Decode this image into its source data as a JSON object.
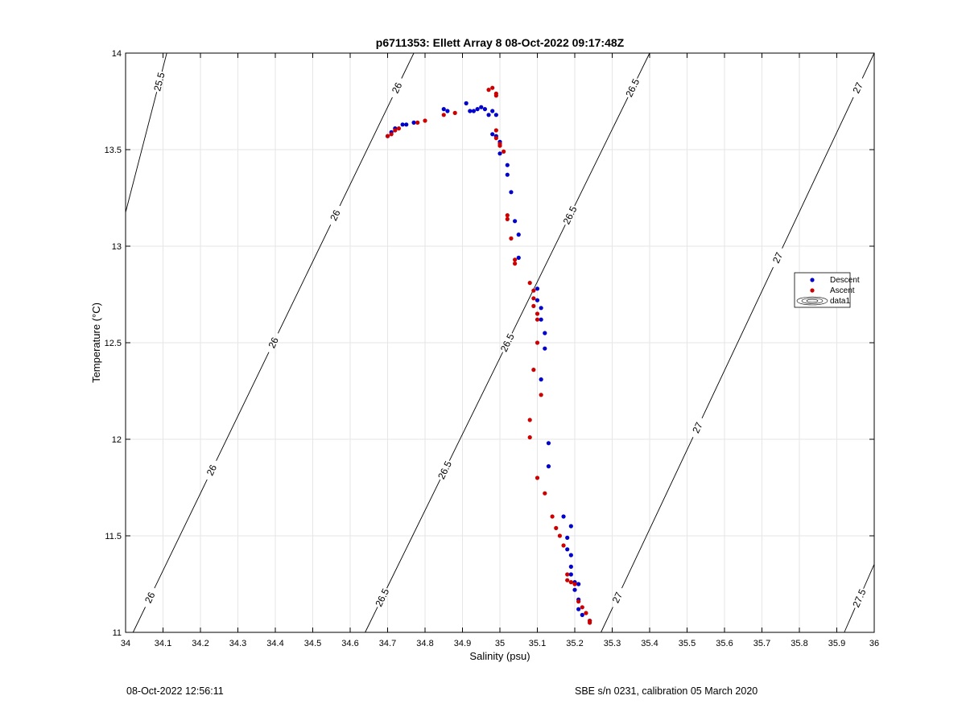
{
  "figure": {
    "footer_left": "08-Oct-2022 12:56:11",
    "footer_right": "SBE s/n 0231, calibration 05 March 2020"
  },
  "colors": {
    "descent": "#0000cc",
    "ascent": "#cc0000",
    "grid": "#e6e6e6",
    "contour": "#000000"
  },
  "chart_data": {
    "type": "scatter",
    "title": "p6711353: Ellett Array 8 08-Oct-2022 09:17:48Z",
    "xlabel": "Salinity (psu)",
    "ylabel": "Temperature (°C)",
    "xlim": [
      34,
      36
    ],
    "ylim": [
      11,
      14
    ],
    "xticks": [
      "34",
      "34.1",
      "34.2",
      "34.3",
      "34.4",
      "34.5",
      "34.6",
      "34.7",
      "34.8",
      "34.9",
      "35",
      "35.1",
      "35.2",
      "35.3",
      "35.4",
      "35.5",
      "35.6",
      "35.7",
      "35.8",
      "35.9",
      "36"
    ],
    "yticks": [
      "11",
      "11.5",
      "12",
      "12.5",
      "13",
      "13.5",
      "14"
    ],
    "grid": true,
    "legend": {
      "placement": "right",
      "entries": [
        "Descent",
        "Ascent",
        "data1"
      ]
    },
    "series": [
      {
        "name": "Descent",
        "points": [
          [
            34.7,
            13.57
          ],
          [
            34.71,
            13.59
          ],
          [
            34.72,
            13.61
          ],
          [
            34.74,
            13.63
          ],
          [
            34.75,
            13.63
          ],
          [
            34.77,
            13.64
          ],
          [
            34.85,
            13.71
          ],
          [
            34.86,
            13.7
          ],
          [
            34.91,
            13.74
          ],
          [
            34.92,
            13.7
          ],
          [
            34.93,
            13.7
          ],
          [
            34.94,
            13.71
          ],
          [
            34.95,
            13.72
          ],
          [
            34.96,
            13.71
          ],
          [
            34.97,
            13.68
          ],
          [
            34.98,
            13.7
          ],
          [
            34.99,
            13.68
          ],
          [
            34.98,
            13.58
          ],
          [
            34.99,
            13.57
          ],
          [
            35.0,
            13.54
          ],
          [
            35.0,
            13.48
          ],
          [
            35.02,
            13.42
          ],
          [
            35.02,
            13.37
          ],
          [
            35.03,
            13.28
          ],
          [
            35.04,
            13.13
          ],
          [
            35.05,
            13.06
          ],
          [
            35.05,
            12.94
          ],
          [
            35.1,
            12.78
          ],
          [
            35.1,
            12.72
          ],
          [
            35.11,
            12.68
          ],
          [
            35.11,
            12.62
          ],
          [
            35.12,
            12.55
          ],
          [
            35.12,
            12.47
          ],
          [
            35.11,
            12.31
          ],
          [
            35.13,
            11.98
          ],
          [
            35.13,
            11.86
          ],
          [
            35.17,
            11.6
          ],
          [
            35.19,
            11.55
          ],
          [
            35.18,
            11.49
          ],
          [
            35.18,
            11.43
          ],
          [
            35.19,
            11.4
          ],
          [
            35.19,
            11.34
          ],
          [
            35.19,
            11.3
          ],
          [
            35.2,
            11.26
          ],
          [
            35.21,
            11.25
          ],
          [
            35.2,
            11.22
          ],
          [
            35.21,
            11.17
          ],
          [
            35.21,
            11.12
          ],
          [
            35.22,
            11.09
          ],
          [
            35.24,
            11.06
          ]
        ]
      },
      {
        "name": "Ascent",
        "points": [
          [
            34.7,
            13.57
          ],
          [
            34.71,
            13.58
          ],
          [
            34.72,
            13.6
          ],
          [
            34.73,
            13.61
          ],
          [
            34.78,
            13.64
          ],
          [
            34.8,
            13.65
          ],
          [
            34.85,
            13.68
          ],
          [
            34.88,
            13.69
          ],
          [
            34.97,
            13.81
          ],
          [
            34.98,
            13.82
          ],
          [
            34.99,
            13.79
          ],
          [
            34.99,
            13.78
          ],
          [
            34.99,
            13.6
          ],
          [
            34.99,
            13.56
          ],
          [
            35.0,
            13.53
          ],
          [
            35.0,
            13.52
          ],
          [
            35.01,
            13.49
          ],
          [
            35.02,
            13.16
          ],
          [
            35.02,
            13.14
          ],
          [
            35.03,
            13.04
          ],
          [
            35.04,
            12.93
          ],
          [
            35.04,
            12.91
          ],
          [
            35.08,
            12.81
          ],
          [
            35.09,
            12.77
          ],
          [
            35.09,
            12.73
          ],
          [
            35.09,
            12.69
          ],
          [
            35.1,
            12.65
          ],
          [
            35.1,
            12.62
          ],
          [
            35.1,
            12.5
          ],
          [
            35.09,
            12.36
          ],
          [
            35.11,
            12.23
          ],
          [
            35.08,
            12.1
          ],
          [
            35.08,
            12.01
          ],
          [
            35.1,
            11.8
          ],
          [
            35.12,
            11.72
          ],
          [
            35.14,
            11.6
          ],
          [
            35.15,
            11.54
          ],
          [
            35.16,
            11.5
          ],
          [
            35.17,
            11.45
          ],
          [
            35.18,
            11.3
          ],
          [
            35.18,
            11.27
          ],
          [
            35.19,
            11.26
          ],
          [
            35.2,
            11.25
          ],
          [
            35.21,
            11.16
          ],
          [
            35.22,
            11.13
          ],
          [
            35.23,
            11.1
          ],
          [
            35.24,
            11.06
          ],
          [
            35.24,
            11.05
          ]
        ]
      }
    ],
    "isopycnals": [
      {
        "sigma": 25.5,
        "x_at_ymin": 33.71,
        "x_at_ymax": 34.11,
        "labels": [
          "25.5"
        ]
      },
      {
        "sigma": 26.0,
        "x_at_ymin": 34.02,
        "x_at_ymax": 34.77,
        "labels": [
          "26",
          "26",
          "26",
          "26",
          "26"
        ]
      },
      {
        "sigma": 26.5,
        "x_at_ymin": 34.64,
        "x_at_ymax": 35.4,
        "labels": [
          "26.5",
          "26.5",
          "26.5",
          "26.5",
          "26.5"
        ]
      },
      {
        "sigma": 27.0,
        "x_at_ymin": 35.27,
        "x_at_ymax": 36.0,
        "labels": [
          "27",
          "27",
          "27",
          "27"
        ]
      },
      {
        "sigma": 27.5,
        "x_at_ymin": 35.92,
        "x_at_ymax": 36.6,
        "labels": [
          "27.5"
        ]
      }
    ]
  }
}
